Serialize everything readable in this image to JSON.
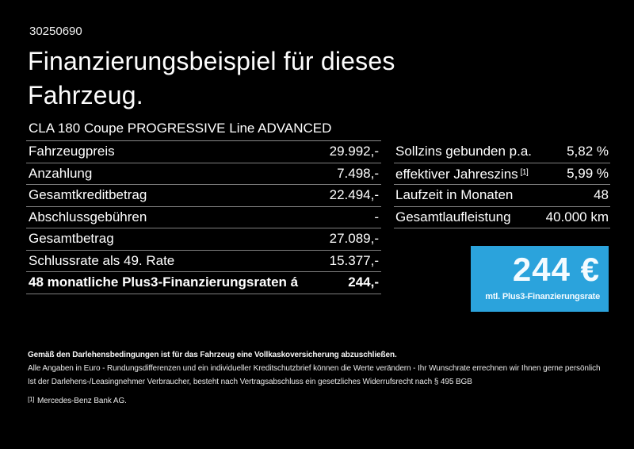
{
  "page": {
    "id_number": "30250690",
    "title": "Finanzierungsbeispiel für dieses Fahrzeug.",
    "vehicle_name": "CLA 180 Coupe PROGRESSIVE Line ADVANCED"
  },
  "finance_table": {
    "rows": [
      {
        "label": "Fahrzeugpreis",
        "value": "29.992,-"
      },
      {
        "label": "Anzahlung",
        "value": "7.498,-"
      },
      {
        "label": "Gesamtkreditbetrag",
        "value": "22.494,-"
      },
      {
        "label": "Abschlussgebühren",
        "value": "-"
      },
      {
        "label": "Gesamtbetrag",
        "value": "27.089,-"
      },
      {
        "label": "Schlussrate als 49. Rate",
        "value": "15.377,-"
      },
      {
        "label": "48 monatliche Plus3-Finanzierungsraten á",
        "value": "244,-"
      }
    ]
  },
  "conditions_table": {
    "rows": [
      {
        "label": "Sollzins gebunden p.a.",
        "sup": "",
        "value": "5,82 %"
      },
      {
        "label": "effektiver Jahreszins",
        "sup": "[1]",
        "value": "5,99 %"
      },
      {
        "label": "Laufzeit in Monaten",
        "sup": "",
        "value": "48"
      },
      {
        "label": "Gesamtlaufleistung",
        "sup": "",
        "value": "40.000 km"
      }
    ]
  },
  "rate_box": {
    "amount": "244 €",
    "caption": "mtl. Plus3-Finanzierungsrate",
    "background_color": "#2BA3DC"
  },
  "footer": {
    "insurance_note": "Gemäß den Darlehensbedingungen ist für das Fahrzeug eine Vollkaskoversicherung abzuschließen.",
    "note_line_1": "Alle Angaben in Euro - Rundungsdifferenzen und ein individueller Kreditschutzbrief können die Werte verändern - Ihr Wunschrate errechnen wir Ihnen gerne persönlich",
    "note_line_2": "Ist der Darlehens-/Leasingnehmer Verbraucher, besteht nach Vertragsabschluss ein gesetzliches Widerrufsrecht nach § 495 BGB",
    "footnote_marker": "[1]",
    "footnote_text": "Mercedes-Benz Bank AG."
  }
}
